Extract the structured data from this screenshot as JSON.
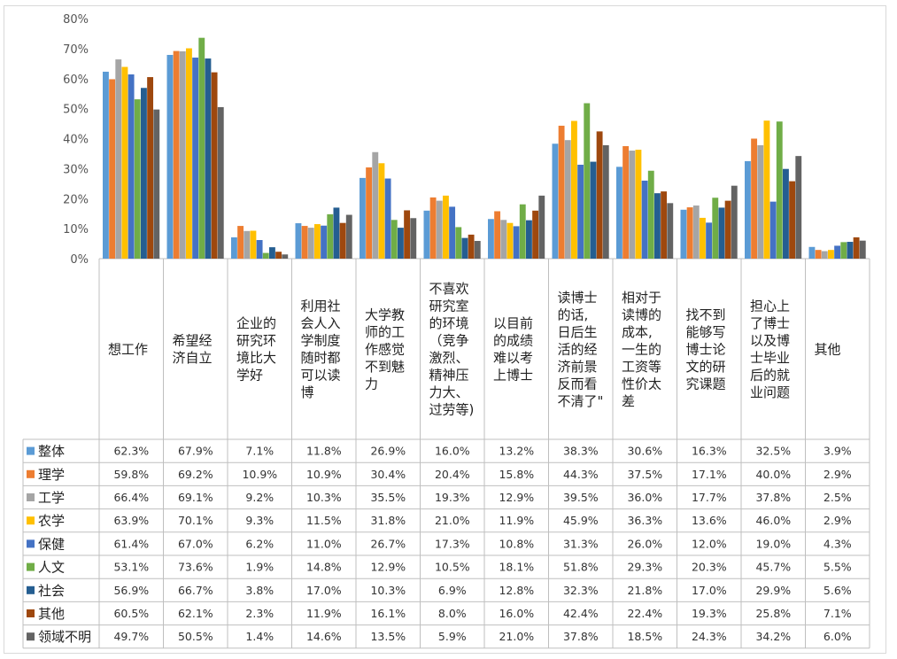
{
  "chart_data": {
    "type": "bar",
    "title": "",
    "xlabel": "",
    "ylabel": "",
    "ylim": [
      0,
      80
    ],
    "yticks": [
      "0%",
      "10%",
      "20%",
      "30%",
      "40%",
      "50%",
      "60%",
      "70%",
      "80%"
    ],
    "grid": false,
    "legend": "table-left",
    "categories": [
      [
        "想工作"
      ],
      [
        "希望经",
        "济自立"
      ],
      [
        "企业的",
        "研究环",
        "境比大",
        "学好"
      ],
      [
        "利用社",
        "会人入",
        "学制度",
        "随时都",
        "可以读",
        "博"
      ],
      [
        "大学教",
        "师的工",
        "作感觉",
        "不到魅",
        "力"
      ],
      [
        "不喜欢",
        "研究室",
        "的环境",
        "（竞争",
        "激烈、",
        "精神压",
        "力大、",
        "过劳等)"
      ],
      [
        "以目前",
        "的成绩",
        "难以考",
        "上博士"
      ],
      [
        "读博士",
        "的话,",
        "日后生",
        "活的经",
        "济前景",
        "反而看",
        "不清了\""
      ],
      [
        "相对于",
        "读博的",
        "成本,",
        "一生的",
        "工资等",
        "性价太",
        "差"
      ],
      [
        "找不到",
        "能够写",
        "博士论",
        "文的研",
        "究课题"
      ],
      [
        "担心上",
        "了博士",
        "以及博",
        "士毕业",
        "后的就",
        "业问题"
      ],
      [
        "其他"
      ]
    ],
    "series": [
      {
        "name": "整体",
        "color": "#5b9bd5",
        "values": [
          62.3,
          67.9,
          7.1,
          11.8,
          26.9,
          16.0,
          13.2,
          38.3,
          30.6,
          16.3,
          32.5,
          3.9
        ],
        "labels": [
          "62.3%",
          "67.9%",
          "7.1%",
          "11.8%",
          "26.9%",
          "16.0%",
          "13.2%",
          "38.3%",
          "30.6%",
          "16.3%",
          "32.5%",
          "3.9%"
        ]
      },
      {
        "name": "理学",
        "color": "#ed7d31",
        "values": [
          59.8,
          69.2,
          10.9,
          10.9,
          30.4,
          20.4,
          15.8,
          44.3,
          37.5,
          17.1,
          40.0,
          2.9
        ],
        "labels": [
          "59.8%",
          "69.2%",
          "10.9%",
          "10.9%",
          "30.4%",
          "20.4%",
          "15.8%",
          "44.3%",
          "37.5%",
          "17.1%",
          "40.0%",
          "2.9%"
        ]
      },
      {
        "name": "工学",
        "color": "#a5a5a5",
        "values": [
          66.4,
          69.1,
          9.2,
          10.3,
          35.5,
          19.3,
          12.9,
          39.5,
          36.0,
          17.7,
          37.8,
          2.5
        ],
        "labels": [
          "66.4%",
          "69.1%",
          "9.2%",
          "10.3%",
          "35.5%",
          "19.3%",
          "12.9%",
          "39.5%",
          "36.0%",
          "17.7%",
          "37.8%",
          "2.5%"
        ]
      },
      {
        "name": "农学",
        "color": "#ffc000",
        "values": [
          63.9,
          70.1,
          9.3,
          11.5,
          31.8,
          21.0,
          11.9,
          45.9,
          36.3,
          13.6,
          46.0,
          2.9
        ],
        "labels": [
          "63.9%",
          "70.1%",
          "9.3%",
          "11.5%",
          "31.8%",
          "21.0%",
          "11.9%",
          "45.9%",
          "36.3%",
          "13.6%",
          "46.0%",
          "2.9%"
        ]
      },
      {
        "name": "保健",
        "color": "#4472c4",
        "values": [
          61.4,
          67.0,
          6.2,
          11.0,
          26.7,
          17.3,
          10.8,
          31.3,
          26.0,
          12.0,
          19.0,
          4.3
        ],
        "labels": [
          "61.4%",
          "67.0%",
          "6.2%",
          "11.0%",
          "26.7%",
          "17.3%",
          "10.8%",
          "31.3%",
          "26.0%",
          "12.0%",
          "19.0%",
          "4.3%"
        ]
      },
      {
        "name": "人文",
        "color": "#70ad47",
        "values": [
          53.1,
          73.6,
          1.9,
          14.8,
          12.9,
          10.5,
          18.1,
          51.8,
          29.3,
          20.3,
          45.7,
          5.5
        ],
        "labels": [
          "53.1%",
          "73.6%",
          "1.9%",
          "14.8%",
          "12.9%",
          "10.5%",
          "18.1%",
          "51.8%",
          "29.3%",
          "20.3%",
          "45.7%",
          "5.5%"
        ]
      },
      {
        "name": "社会",
        "color": "#255e91",
        "values": [
          56.9,
          66.7,
          3.8,
          17.0,
          10.3,
          6.9,
          12.8,
          32.3,
          21.8,
          17.0,
          29.9,
          5.6
        ],
        "labels": [
          "56.9%",
          "66.7%",
          "3.8%",
          "17.0%",
          "10.3%",
          "6.9%",
          "12.8%",
          "32.3%",
          "21.8%",
          "17.0%",
          "29.9%",
          "5.6%"
        ]
      },
      {
        "name": "其他",
        "color": "#9e480e",
        "values": [
          60.5,
          62.1,
          2.3,
          11.9,
          16.1,
          8.0,
          16.0,
          42.4,
          22.4,
          19.3,
          25.8,
          7.1
        ],
        "labels": [
          "60.5%",
          "62.1%",
          "2.3%",
          "11.9%",
          "16.1%",
          "8.0%",
          "16.0%",
          "42.4%",
          "22.4%",
          "19.3%",
          "25.8%",
          "7.1%"
        ]
      },
      {
        "name": "领域不明",
        "color": "#636363",
        "values": [
          49.7,
          50.5,
          1.4,
          14.6,
          13.5,
          5.9,
          21.0,
          37.8,
          18.5,
          24.3,
          34.2,
          6.0
        ],
        "labels": [
          "49.7%",
          "50.5%",
          "1.4%",
          "14.6%",
          "13.5%",
          "5.9%",
          "21.0%",
          "37.8%",
          "18.5%",
          "24.3%",
          "34.2%",
          "6.0%"
        ]
      }
    ]
  }
}
